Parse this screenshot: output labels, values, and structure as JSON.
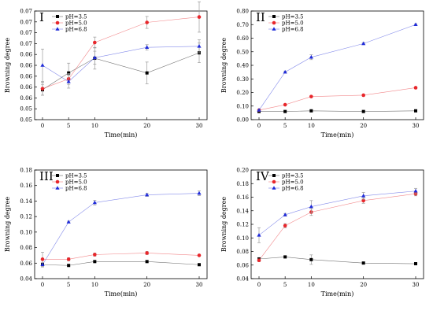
{
  "chart_data": [
    {
      "type": "line",
      "panel_label": "I",
      "xlabel": "Time(min)",
      "ylabel": "Browning degree",
      "x": [
        0,
        5,
        10,
        20,
        30
      ],
      "xticks": [
        "0",
        "5",
        "10",
        "20",
        "30"
      ],
      "ylim": [
        0.05,
        0.07
      ],
      "yticks": [
        "0.05",
        "0.05",
        "0.06",
        "0.06",
        "0.06",
        "0.06",
        "0.06",
        "0.07",
        "0.07",
        "0.07",
        "0.07"
      ],
      "legend_position": "top-left",
      "series": [
        {
          "name": "pH=3.5",
          "color": "#000000",
          "marker": "square",
          "values": [
            0.0555,
            0.0586,
            0.0613,
            0.0586,
            0.0623
          ],
          "errors": [
            0.001,
            0.0018,
            0.002,
            0.002,
            0.0018
          ]
        },
        {
          "name": "pH=5.0",
          "color": "#e8262b",
          "marker": "circle",
          "values": [
            0.0557,
            0.0575,
            0.0642,
            0.0679,
            0.0689
          ],
          "errors": [
            0.0012,
            0.001,
            0.001,
            0.0011,
            0.0028
          ]
        },
        {
          "name": "pH=6.8",
          "color": "#1f2bd9",
          "marker": "triangle",
          "values": [
            0.06,
            0.057,
            0.0614,
            0.0633,
            0.0635
          ],
          "errors": [
            0.003,
            0.0012,
            0.0012,
            0.0005,
            0.0012
          ]
        }
      ]
    },
    {
      "type": "line",
      "panel_label": "II",
      "xlabel": "Time(min)",
      "ylabel": "Browning degree",
      "x": [
        0,
        5,
        10,
        20,
        30
      ],
      "xticks": [
        "0",
        "5",
        "10",
        "20",
        "30"
      ],
      "ylim": [
        0.0,
        0.8
      ],
      "yticks": [
        "0.00",
        "0.10",
        "0.20",
        "0.30",
        "0.40",
        "0.50",
        "0.60",
        "0.70",
        "0.80"
      ],
      "legend_position": "top-left",
      "series": [
        {
          "name": "pH=3.5",
          "color": "#000000",
          "marker": "square",
          "values": [
            0.06,
            0.06,
            0.065,
            0.06,
            0.065
          ],
          "errors": [
            0.005,
            0.004,
            0.005,
            0.004,
            0.004
          ]
        },
        {
          "name": "pH=5.0",
          "color": "#e8262b",
          "marker": "circle",
          "values": [
            0.07,
            0.11,
            0.17,
            0.18,
            0.235
          ],
          "errors": [
            0.005,
            0.005,
            0.006,
            0.005,
            0.006
          ]
        },
        {
          "name": "pH=6.8",
          "color": "#1f2bd9",
          "marker": "triangle",
          "values": [
            0.07,
            0.35,
            0.46,
            0.56,
            0.7
          ],
          "errors": [
            0.005,
            0.008,
            0.018,
            0.008,
            0.006
          ]
        }
      ]
    },
    {
      "type": "line",
      "panel_label": "III",
      "xlabel": "Time(min)",
      "ylabel": "Browning degree",
      "x": [
        0,
        5,
        10,
        20,
        30
      ],
      "xticks": [
        "0",
        "5",
        "10",
        "20",
        "30"
      ],
      "ylim": [
        0.04,
        0.18
      ],
      "yticks": [
        "0.04",
        "0.06",
        "0.08",
        "0.10",
        "0.12",
        "0.14",
        "0.16",
        "0.18"
      ],
      "legend_position": "top-left",
      "series": [
        {
          "name": "pH=3.5",
          "color": "#000000",
          "marker": "square",
          "values": [
            0.058,
            0.057,
            0.062,
            0.062,
            0.058
          ],
          "errors": [
            0.002,
            0.001,
            0.001,
            0.001,
            0.001
          ]
        },
        {
          "name": "pH=5.0",
          "color": "#e8262b",
          "marker": "circle",
          "values": [
            0.065,
            0.065,
            0.071,
            0.073,
            0.07
          ],
          "errors": [
            0.009,
            0.002,
            0.002,
            0.002,
            0.001
          ]
        },
        {
          "name": "pH=6.8",
          "color": "#1f2bd9",
          "marker": "triangle",
          "values": [
            0.058,
            0.113,
            0.138,
            0.148,
            0.15
          ],
          "errors": [
            0.003,
            0.001,
            0.003,
            0.002,
            0.003
          ]
        }
      ]
    },
    {
      "type": "line",
      "panel_label": "IV",
      "xlabel": "Time(min)",
      "ylabel": "Browning degree",
      "x": [
        0,
        5,
        10,
        20,
        30
      ],
      "xticks": [
        "0",
        "5",
        "10",
        "20",
        "30"
      ],
      "ylim": [
        0.04,
        0.2
      ],
      "yticks": [
        "0.04",
        "0.06",
        "0.08",
        "0.10",
        "0.12",
        "0.14",
        "0.16",
        "0.18",
        "0.20"
      ],
      "legend_position": "top-left",
      "series": [
        {
          "name": "pH=3.5",
          "color": "#000000",
          "marker": "square",
          "values": [
            0.069,
            0.072,
            0.068,
            0.063,
            0.062
          ],
          "errors": [
            0.002,
            0.001,
            0.007,
            0.001,
            0.001
          ]
        },
        {
          "name": "pH=5.0",
          "color": "#e8262b",
          "marker": "circle",
          "values": [
            0.067,
            0.118,
            0.138,
            0.155,
            0.165
          ],
          "errors": [
            0.002,
            0.003,
            0.005,
            0.004,
            0.003
          ]
        },
        {
          "name": "pH=6.8",
          "color": "#1f2bd9",
          "marker": "triangle",
          "values": [
            0.104,
            0.134,
            0.146,
            0.162,
            0.169
          ],
          "errors": [
            0.011,
            0.002,
            0.009,
            0.005,
            0.004
          ]
        }
      ]
    }
  ]
}
